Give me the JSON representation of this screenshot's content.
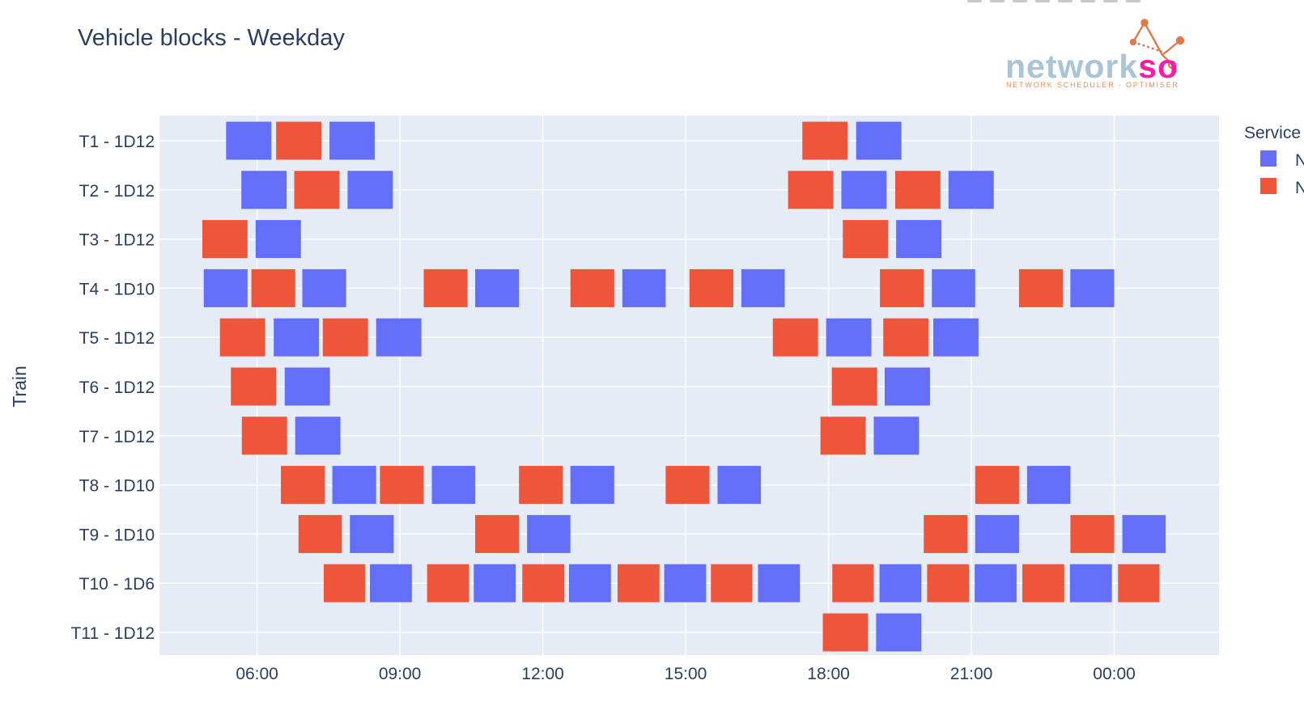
{
  "chart_data": {
    "type": "gantt",
    "title": "Vehicle blocks - Weekday",
    "ylabel": "Train",
    "xlabel": "",
    "x_unit": "hours since 00:00 of the service day",
    "xlim": [
      3.95,
      26.2
    ],
    "x_ticks": [
      {
        "value": 6,
        "label": "06:00"
      },
      {
        "value": 9,
        "label": "09:00"
      },
      {
        "value": 12,
        "label": "12:00"
      },
      {
        "value": 15,
        "label": "15:00"
      },
      {
        "value": 18,
        "label": "18:00"
      },
      {
        "value": 21,
        "label": "21:00"
      },
      {
        "value": 24,
        "label": "00:00"
      }
    ],
    "grid": true,
    "legend": {
      "title": "Service",
      "position": "top-right",
      "entries": [
        {
          "key": "blue",
          "label": "N",
          "color": "#636efa"
        },
        {
          "key": "red",
          "label": "N",
          "color": "#ef553b"
        }
      ]
    },
    "rows": [
      {
        "label": "T1 - 1D12",
        "blocks": [
          {
            "start": 5.35,
            "end": 6.3,
            "service": "blue"
          },
          {
            "start": 6.4,
            "end": 7.35,
            "service": "red"
          },
          {
            "start": 7.52,
            "end": 8.47,
            "service": "blue"
          },
          {
            "start": 17.45,
            "end": 18.4,
            "service": "red"
          },
          {
            "start": 18.58,
            "end": 19.53,
            "service": "blue"
          }
        ]
      },
      {
        "label": "T2 - 1D12",
        "blocks": [
          {
            "start": 5.67,
            "end": 6.62,
            "service": "blue"
          },
          {
            "start": 6.78,
            "end": 7.73,
            "service": "red"
          },
          {
            "start": 7.9,
            "end": 8.85,
            "service": "blue"
          },
          {
            "start": 17.15,
            "end": 18.1,
            "service": "red"
          },
          {
            "start": 18.27,
            "end": 19.22,
            "service": "blue"
          },
          {
            "start": 19.4,
            "end": 20.35,
            "service": "red"
          },
          {
            "start": 20.52,
            "end": 21.47,
            "service": "blue"
          }
        ]
      },
      {
        "label": "T3 - 1D12",
        "blocks": [
          {
            "start": 4.85,
            "end": 5.8,
            "service": "red"
          },
          {
            "start": 5.97,
            "end": 6.92,
            "service": "blue"
          },
          {
            "start": 18.3,
            "end": 19.25,
            "service": "red"
          },
          {
            "start": 19.42,
            "end": 20.37,
            "service": "blue"
          }
        ]
      },
      {
        "label": "T4 - 1D10",
        "blocks": [
          {
            "start": 4.88,
            "end": 5.8,
            "service": "blue"
          },
          {
            "start": 5.88,
            "end": 6.8,
            "service": "red"
          },
          {
            "start": 6.95,
            "end": 7.87,
            "service": "blue"
          },
          {
            "start": 9.5,
            "end": 10.42,
            "service": "red"
          },
          {
            "start": 10.58,
            "end": 11.5,
            "service": "blue"
          },
          {
            "start": 12.58,
            "end": 13.5,
            "service": "red"
          },
          {
            "start": 13.67,
            "end": 14.58,
            "service": "blue"
          },
          {
            "start": 15.08,
            "end": 16.0,
            "service": "red"
          },
          {
            "start": 16.17,
            "end": 17.08,
            "service": "blue"
          },
          {
            "start": 19.08,
            "end": 20.0,
            "service": "red"
          },
          {
            "start": 20.17,
            "end": 21.08,
            "service": "blue"
          },
          {
            "start": 22.0,
            "end": 22.92,
            "service": "red"
          },
          {
            "start": 23.08,
            "end": 24.0,
            "service": "blue"
          }
        ]
      },
      {
        "label": "T5 - 1D12",
        "blocks": [
          {
            "start": 5.22,
            "end": 6.17,
            "service": "red"
          },
          {
            "start": 6.35,
            "end": 7.3,
            "service": "blue"
          },
          {
            "start": 7.38,
            "end": 8.33,
            "service": "red"
          },
          {
            "start": 8.5,
            "end": 9.45,
            "service": "blue"
          },
          {
            "start": 16.83,
            "end": 17.78,
            "service": "red"
          },
          {
            "start": 17.95,
            "end": 18.9,
            "service": "blue"
          },
          {
            "start": 19.15,
            "end": 20.1,
            "service": "red"
          },
          {
            "start": 20.2,
            "end": 21.15,
            "service": "blue"
          }
        ]
      },
      {
        "label": "T6 - 1D12",
        "blocks": [
          {
            "start": 5.45,
            "end": 6.4,
            "service": "red"
          },
          {
            "start": 6.58,
            "end": 7.53,
            "service": "blue"
          },
          {
            "start": 18.07,
            "end": 19.02,
            "service": "red"
          },
          {
            "start": 19.18,
            "end": 20.13,
            "service": "blue"
          }
        ]
      },
      {
        "label": "T7 - 1D12",
        "blocks": [
          {
            "start": 5.68,
            "end": 6.63,
            "service": "red"
          },
          {
            "start": 6.8,
            "end": 7.75,
            "service": "blue"
          },
          {
            "start": 17.83,
            "end": 18.78,
            "service": "red"
          },
          {
            "start": 18.95,
            "end": 19.9,
            "service": "blue"
          }
        ]
      },
      {
        "label": "T8 - 1D10",
        "blocks": [
          {
            "start": 6.5,
            "end": 7.42,
            "service": "red"
          },
          {
            "start": 7.58,
            "end": 8.5,
            "service": "blue"
          },
          {
            "start": 8.58,
            "end": 9.5,
            "service": "red"
          },
          {
            "start": 9.67,
            "end": 10.58,
            "service": "blue"
          },
          {
            "start": 11.5,
            "end": 12.42,
            "service": "red"
          },
          {
            "start": 12.58,
            "end": 13.5,
            "service": "blue"
          },
          {
            "start": 14.58,
            "end": 15.5,
            "service": "red"
          },
          {
            "start": 15.67,
            "end": 16.58,
            "service": "blue"
          },
          {
            "start": 21.08,
            "end": 22.0,
            "service": "red"
          },
          {
            "start": 22.17,
            "end": 23.08,
            "service": "blue"
          }
        ]
      },
      {
        "label": "T9 - 1D10",
        "blocks": [
          {
            "start": 6.87,
            "end": 7.78,
            "service": "red"
          },
          {
            "start": 7.95,
            "end": 8.87,
            "service": "blue"
          },
          {
            "start": 10.58,
            "end": 11.5,
            "service": "red"
          },
          {
            "start": 11.67,
            "end": 12.58,
            "service": "blue"
          },
          {
            "start": 20.0,
            "end": 20.92,
            "service": "red"
          },
          {
            "start": 21.08,
            "end": 22.0,
            "service": "blue"
          },
          {
            "start": 23.08,
            "end": 24.0,
            "service": "red"
          },
          {
            "start": 24.17,
            "end": 25.08,
            "service": "blue"
          }
        ]
      },
      {
        "label": "T10 - 1D6",
        "blocks": [
          {
            "start": 7.4,
            "end": 8.27,
            "service": "red"
          },
          {
            "start": 8.37,
            "end": 9.25,
            "service": "blue"
          },
          {
            "start": 9.57,
            "end": 10.45,
            "service": "red"
          },
          {
            "start": 10.55,
            "end": 11.43,
            "service": "blue"
          },
          {
            "start": 11.57,
            "end": 12.45,
            "service": "red"
          },
          {
            "start": 12.55,
            "end": 13.43,
            "service": "blue"
          },
          {
            "start": 13.57,
            "end": 14.45,
            "service": "red"
          },
          {
            "start": 14.55,
            "end": 15.43,
            "service": "blue"
          },
          {
            "start": 15.53,
            "end": 16.4,
            "service": "red"
          },
          {
            "start": 16.52,
            "end": 17.4,
            "service": "blue"
          },
          {
            "start": 18.08,
            "end": 18.95,
            "service": "red"
          },
          {
            "start": 19.07,
            "end": 19.95,
            "service": "blue"
          },
          {
            "start": 20.07,
            "end": 20.95,
            "service": "red"
          },
          {
            "start": 21.07,
            "end": 21.95,
            "service": "blue"
          },
          {
            "start": 22.07,
            "end": 22.95,
            "service": "red"
          },
          {
            "start": 23.07,
            "end": 23.95,
            "service": "blue"
          },
          {
            "start": 24.08,
            "end": 24.95,
            "service": "red"
          }
        ]
      },
      {
        "label": "T11 - 1D12",
        "blocks": [
          {
            "start": 17.88,
            "end": 18.83,
            "service": "red"
          },
          {
            "start": 19.0,
            "end": 19.95,
            "service": "blue"
          }
        ]
      }
    ]
  },
  "logo": {
    "word_main": "network",
    "word_accent": "so",
    "tagline": "NETWORK SCHEDULER · OPTIMISER",
    "colors": {
      "main": "#a9c4d4",
      "accent": "#ff1aa8",
      "tagline": "#e48a5a",
      "mark": "#e07a4a"
    }
  },
  "colors": {
    "plot_bg": "#e5ecf6",
    "grid": "#ffffff",
    "text": "#2a3f5f",
    "blue": "#636efa",
    "red": "#ef553b"
  }
}
